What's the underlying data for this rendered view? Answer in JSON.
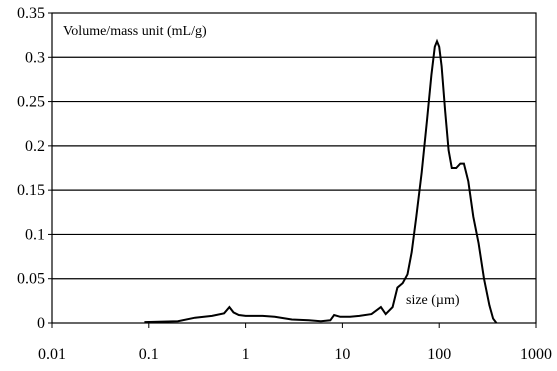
{
  "chart_data": {
    "type": "line",
    "x_scale": "log",
    "xlim": [
      0.01,
      1000
    ],
    "ylim": [
      0,
      0.35
    ],
    "y_gridlines": true,
    "annotations": {
      "ylabel": "Volume/mass unit (mL/g)",
      "xlabel": "size (µm)"
    },
    "x_ticks": [
      {
        "value": 0.01,
        "label": "0.01"
      },
      {
        "value": 0.1,
        "label": "0.1"
      },
      {
        "value": 1,
        "label": "1"
      },
      {
        "value": 10,
        "label": "10"
      },
      {
        "value": 100,
        "label": "100"
      },
      {
        "value": 1000,
        "label": "1000"
      }
    ],
    "y_ticks": [
      {
        "value": 0,
        "label": "0"
      },
      {
        "value": 0.05,
        "label": "0.05"
      },
      {
        "value": 0.1,
        "label": "0.1"
      },
      {
        "value": 0.15,
        "label": "0.15"
      },
      {
        "value": 0.2,
        "label": "0.2"
      },
      {
        "value": 0.25,
        "label": "0.25"
      },
      {
        "value": 0.3,
        "label": "0.3"
      },
      {
        "value": 0.35,
        "label": "0.35"
      }
    ],
    "series": [
      {
        "color": "#000000",
        "points": [
          [
            0.09,
            0.001
          ],
          [
            0.2,
            0.002
          ],
          [
            0.3,
            0.006
          ],
          [
            0.45,
            0.008
          ],
          [
            0.6,
            0.011
          ],
          [
            0.68,
            0.018
          ],
          [
            0.75,
            0.012
          ],
          [
            0.85,
            0.009
          ],
          [
            1.0,
            0.008
          ],
          [
            1.5,
            0.008
          ],
          [
            2.0,
            0.007
          ],
          [
            3.0,
            0.004
          ],
          [
            4.5,
            0.003
          ],
          [
            6.0,
            0.002
          ],
          [
            7.5,
            0.003
          ],
          [
            8.2,
            0.009
          ],
          [
            9.5,
            0.007
          ],
          [
            12,
            0.007
          ],
          [
            15,
            0.008
          ],
          [
            20,
            0.01
          ],
          [
            25,
            0.018
          ],
          [
            28,
            0.01
          ],
          [
            33,
            0.018
          ],
          [
            37,
            0.04
          ],
          [
            42,
            0.045
          ],
          [
            47,
            0.055
          ],
          [
            52,
            0.08
          ],
          [
            58,
            0.12
          ],
          [
            66,
            0.17
          ],
          [
            75,
            0.23
          ],
          [
            83,
            0.28
          ],
          [
            90,
            0.312
          ],
          [
            95,
            0.318
          ],
          [
            100,
            0.312
          ],
          [
            106,
            0.29
          ],
          [
            115,
            0.24
          ],
          [
            125,
            0.195
          ],
          [
            135,
            0.175
          ],
          [
            150,
            0.175
          ],
          [
            165,
            0.18
          ],
          [
            180,
            0.18
          ],
          [
            200,
            0.16
          ],
          [
            225,
            0.12
          ],
          [
            255,
            0.09
          ],
          [
            290,
            0.05
          ],
          [
            330,
            0.02
          ],
          [
            360,
            0.005
          ],
          [
            390,
            0.0
          ]
        ]
      }
    ]
  }
}
